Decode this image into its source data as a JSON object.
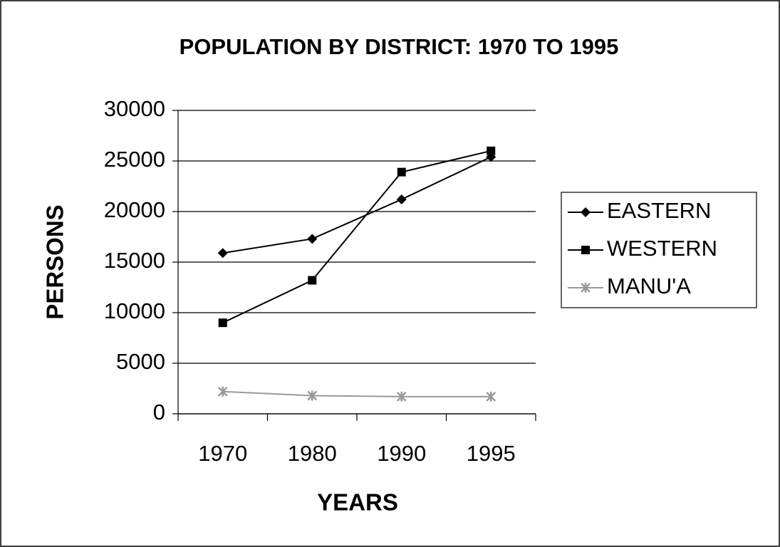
{
  "chart_data": {
    "type": "line",
    "title": "POPULATION BY DISTRICT: 1970 TO 1995",
    "xlabel": "YEARS",
    "ylabel": "PERSONS",
    "categories": [
      "1970",
      "1980",
      "1990",
      "1995"
    ],
    "series": [
      {
        "name": "EASTERN",
        "color": "#000000",
        "marker": "diamond",
        "values": [
          15900,
          17300,
          21200,
          25400
        ]
      },
      {
        "name": "WESTERN",
        "color": "#000000",
        "marker": "square",
        "values": [
          9000,
          13200,
          23900,
          26000
        ]
      },
      {
        "name": "MANU'A",
        "color": "#999999",
        "marker": "star",
        "values": [
          2200,
          1800,
          1700,
          1700
        ]
      }
    ],
    "ylim": [
      0,
      30000
    ],
    "yticks": [
      0,
      5000,
      10000,
      15000,
      20000,
      25000,
      30000
    ],
    "grid": true,
    "legend": "right"
  }
}
